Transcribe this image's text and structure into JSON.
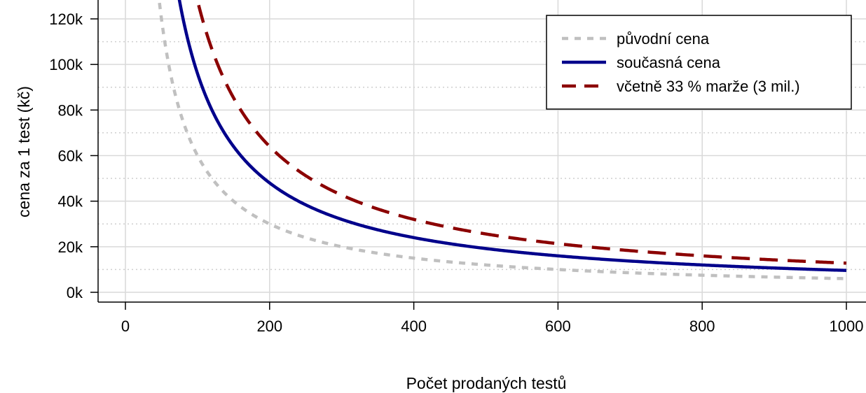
{
  "chart_data": {
    "type": "line",
    "title": "",
    "xlabel": "Počet prodaných testů",
    "ylabel": "cena za 1 test (kč)",
    "xlim": [
      0,
      1000
    ],
    "ylim": [
      0,
      120000
    ],
    "x_ticks": [
      0,
      200,
      400,
      600,
      800,
      1000
    ],
    "x_tick_labels": [
      "0",
      "200",
      "400",
      "600",
      "800",
      "1000"
    ],
    "y_ticks": [
      0,
      20000,
      40000,
      60000,
      80000,
      100000,
      120000
    ],
    "y_tick_labels": [
      "0k",
      "20k",
      "40k",
      "60k",
      "80k",
      "100k",
      "120k"
    ],
    "y_minor_grid": [
      10000,
      30000,
      50000,
      70000,
      90000,
      110000
    ],
    "grid": true,
    "legend_position": "top-right",
    "series": [
      {
        "name": "původní cena",
        "style": "dotted",
        "color": "#c0c0c0",
        "x": [
          50,
          60,
          70,
          80,
          100,
          125,
          150,
          200,
          250,
          300,
          400,
          500,
          600,
          700,
          800,
          900,
          1000
        ],
        "y": [
          120000,
          100000,
          85700,
          75000,
          60000,
          48000,
          40000,
          30000,
          24000,
          20000,
          15000,
          12000,
          10000,
          8600,
          7500,
          6700,
          6000
        ]
      },
      {
        "name": "současná cena",
        "style": "solid",
        "color": "#00008b",
        "x": [
          75,
          80,
          90,
          100,
          125,
          150,
          200,
          250,
          300,
          400,
          500,
          600,
          700,
          800,
          900,
          1000
        ],
        "y": [
          128000,
          120000,
          106700,
          96000,
          76800,
          64000,
          48000,
          38400,
          32000,
          24000,
          19200,
          16000,
          13700,
          12000,
          10700,
          9600
        ]
      },
      {
        "name": "včetně 33 % marže (3 mil.)",
        "style": "dashed",
        "color": "#8b0000",
        "x": [
          100,
          110,
          125,
          150,
          175,
          200,
          250,
          300,
          400,
          500,
          600,
          700,
          800,
          900,
          1000
        ],
        "y": [
          128000,
          116400,
          102400,
          85300,
          73100,
          64000,
          51200,
          42700,
          32000,
          25600,
          21300,
          18300,
          16000,
          14200,
          12800
        ]
      }
    ]
  }
}
